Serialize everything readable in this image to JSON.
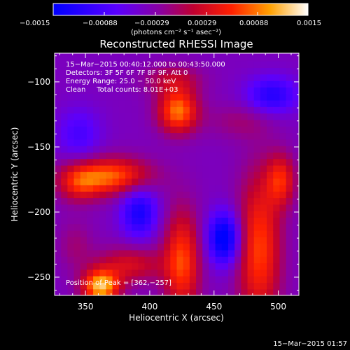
{
  "colorbar": {
    "ticks": [
      "−0.0015",
      "−0.00088",
      "−0.00029",
      "0.00029",
      "0.00088",
      "0.0015"
    ],
    "units": "(photons cm⁻² s⁻¹ asec⁻²)"
  },
  "header": {
    "line1": "15−Mar−2015 00:40:12.000 to 00:43:50.000",
    "line2": "Detectors: 3F 5F 6F 7F 8F 9F, Att 0",
    "line3": "Energy Range: 25.0 − 50.0 keV",
    "line4": "Clean     Total counts: 8.01E+03"
  },
  "peak_label": "Position of Peak = [362,−257]",
  "footer_timestamp": "15−Mar−2015 01:57",
  "chart_data": {
    "type": "heatmap",
    "title": "Reconstructed RHESSI Image",
    "xlabel": "Heliocentric X (arcsec)",
    "ylabel": "Heliocentric Y (arcsec)",
    "xlim": [
      326,
      516
    ],
    "ylim": [
      -264,
      -78
    ],
    "x_ticks": [
      350,
      400,
      450,
      500
    ],
    "y_ticks": [
      -100,
      -150,
      -200,
      -250
    ],
    "x_tick_labels": [
      "350",
      "400",
      "450",
      "500"
    ],
    "y_tick_labels": [
      "−100",
      "−150",
      "−200",
      "−250"
    ],
    "colorbar_range": [
      -0.0015,
      0.0015
    ],
    "colormap": "blue-purple-red-yellow-white",
    "background_value": -0.0004,
    "sources": [
      {
        "x": 362,
        "y": -257,
        "value": 0.0016,
        "sx": 10,
        "sy": 9
      },
      {
        "x": 385,
        "y": -240,
        "value": 0.0007,
        "sx": 18,
        "sy": 10
      },
      {
        "x": 425,
        "y": -238,
        "value": 0.0011,
        "sx": 10,
        "sy": 28
      },
      {
        "x": 422,
        "y": -122,
        "value": 0.0013,
        "sx": 11,
        "sy": 12
      },
      {
        "x": 418,
        "y": -98,
        "value": 0.0005,
        "sx": 16,
        "sy": 8
      },
      {
        "x": 370,
        "y": -172,
        "value": 0.0012,
        "sx": 22,
        "sy": 10
      },
      {
        "x": 345,
        "y": -178,
        "value": 0.0007,
        "sx": 12,
        "sy": 10
      },
      {
        "x": 485,
        "y": -228,
        "value": 0.0011,
        "sx": 12,
        "sy": 40
      },
      {
        "x": 502,
        "y": -175,
        "value": 0.0009,
        "sx": 8,
        "sy": 14
      },
      {
        "x": 470,
        "y": -130,
        "value": 0.0003,
        "sx": 18,
        "sy": 10
      },
      {
        "x": 342,
        "y": -225,
        "value": 0.0003,
        "sx": 10,
        "sy": 14
      },
      {
        "x": 458,
        "y": -220,
        "value": -0.0013,
        "sx": 9,
        "sy": 14
      },
      {
        "x": 392,
        "y": -200,
        "value": -0.0009,
        "sx": 10,
        "sy": 14
      },
      {
        "x": 495,
        "y": -110,
        "value": -0.0008,
        "sx": 14,
        "sy": 10
      },
      {
        "x": 345,
        "y": -140,
        "value": -0.0005,
        "sx": 12,
        "sy": 14
      }
    ]
  }
}
